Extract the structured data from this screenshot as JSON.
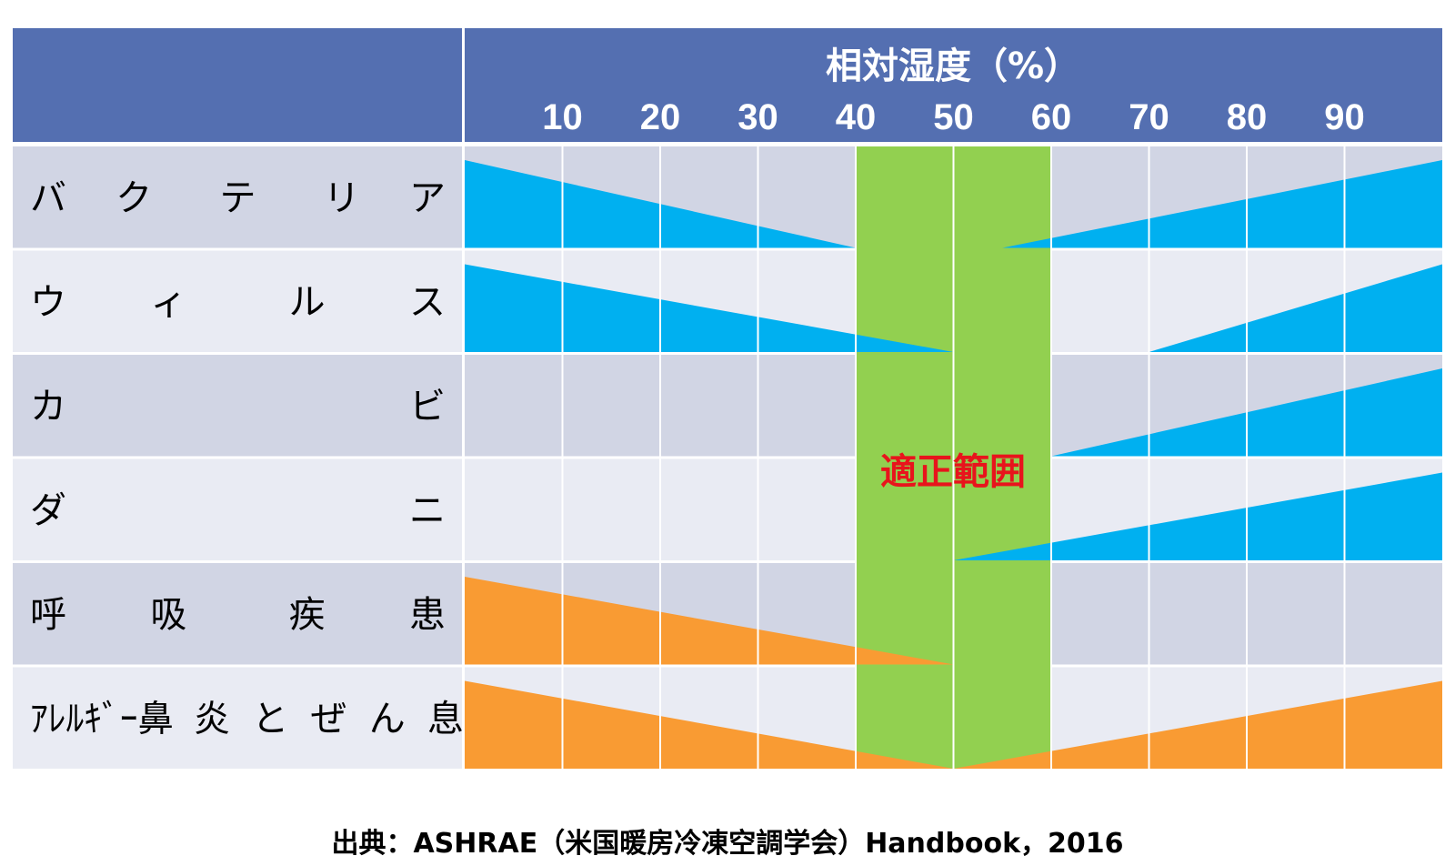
{
  "chart_data": {
    "type": "area",
    "title": "相対湿度（%）",
    "x_ticks": [
      10,
      20,
      30,
      40,
      50,
      60,
      70,
      80,
      90
    ],
    "x_range": [
      0,
      100
    ],
    "optimal_range": {
      "label": "適正範囲",
      "from": 40,
      "to": 60
    },
    "rows": [
      {
        "label": "バクテリア",
        "label_chars": [
          "バ",
          "ク",
          "テ",
          "リ",
          "ア"
        ],
        "color": "#00b0f0",
        "low_side": {
          "from": 0,
          "to": 40,
          "start_level": 1.0
        },
        "high_side": {
          "from": 55,
          "to": 100,
          "end_level": 1.0
        }
      },
      {
        "label": "ウィルス",
        "label_chars": [
          "ウ",
          "ィ",
          "ル",
          "ス"
        ],
        "color": "#00b0f0",
        "low_side": {
          "from": 0,
          "to": 50,
          "start_level": 1.0
        },
        "high_side": {
          "from": 70,
          "to": 100,
          "end_level": 1.0
        }
      },
      {
        "label": "カビ",
        "label_chars": [
          "カ",
          "ビ"
        ],
        "color": "#00b0f0",
        "low_side": null,
        "high_side": {
          "from": 60,
          "to": 100,
          "end_level": 1.0
        }
      },
      {
        "label": "ダニ",
        "label_chars": [
          "ダ",
          "ニ"
        ],
        "color": "#00b0f0",
        "low_side": null,
        "high_side": {
          "from": 50,
          "to": 100,
          "end_level": 1.0
        }
      },
      {
        "label": "呼吸疾患",
        "label_chars": [
          "呼",
          "吸",
          "疾",
          "患"
        ],
        "color": "#f99b33",
        "low_side": {
          "from": 0,
          "to": 50,
          "start_level": 1.0
        },
        "high_side": null
      },
      {
        "label": "アレルギー鼻炎とぜん息",
        "label_chars": [
          "ｱﾚﾙｷﾞｰ鼻",
          "炎",
          "と",
          "ぜ",
          "ん",
          "息"
        ],
        "color": "#f99b33",
        "low_side": {
          "from": 0,
          "to": 50,
          "start_level": 1.0
        },
        "high_side": {
          "from": 50,
          "to": 100,
          "end_level": 1.0
        }
      }
    ]
  },
  "colors": {
    "header_bg": "#546fb1",
    "row_dark": "#d1d5e4",
    "row_light": "#e9ebf3",
    "optimal_fill": "#92d050",
    "grid_line": "#ffffff",
    "optimal_text": "#e8141c"
  },
  "source_note": "出典：ASHRAE（米国暖房冷凍空調学会）Handbook，2016"
}
